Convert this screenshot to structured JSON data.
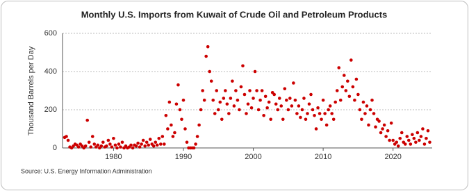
{
  "chart_data": {
    "type": "scatter",
    "title": "Monthly U.S. Imports from Kuwait of Crude Oil and Petroleum Products",
    "y_label": "Thousand Barrels per Day",
    "source": "Source: U.S. Energy Information Administration",
    "color": "#cc0000",
    "grid": true,
    "xlim": [
      1972.7,
      2025.6
    ],
    "xticks": [
      1980,
      1990,
      2000,
      2010,
      2020
    ],
    "ylim": [
      0,
      600
    ],
    "yticks": [
      0,
      200,
      400,
      600
    ],
    "x": [
      1973,
      1973.25,
      1973.5,
      1973.75,
      1974,
      1974.25,
      1974.5,
      1974.75,
      1975,
      1975.25,
      1975.5,
      1975.75,
      1976,
      1976.25,
      1976.5,
      1976.75,
      1977,
      1977.25,
      1977.5,
      1977.75,
      1978,
      1978.25,
      1978.5,
      1978.75,
      1979,
      1979.25,
      1979.5,
      1979.75,
      1980,
      1980.25,
      1980.5,
      1980.75,
      1981,
      1981.25,
      1981.5,
      1981.75,
      1982,
      1982.25,
      1982.5,
      1982.75,
      1983,
      1983.25,
      1983.5,
      1983.75,
      1984,
      1984.25,
      1984.5,
      1984.75,
      1985,
      1985.25,
      1985.5,
      1985.75,
      1986,
      1986.25,
      1986.5,
      1986.75,
      1987,
      1987.25,
      1987.5,
      1987.75,
      1988,
      1988.25,
      1988.5,
      1988.75,
      1989,
      1989.25,
      1989.5,
      1989.75,
      1990,
      1990.25,
      1990.5,
      1990.75,
      1991,
      1991.25,
      1991.5,
      1991.75,
      1992,
      1992.25,
      1992.5,
      1992.75,
      1993,
      1993.25,
      1993.5,
      1993.75,
      1994,
      1994.25,
      1994.5,
      1994.75,
      1995,
      1995.25,
      1995.5,
      1995.75,
      1996,
      1996.25,
      1996.5,
      1996.75,
      1997,
      1997.25,
      1997.5,
      1997.75,
      1998,
      1998.25,
      1998.5,
      1998.75,
      1999,
      1999.25,
      1999.5,
      1999.75,
      2000,
      2000.25,
      2000.5,
      2000.75,
      2001,
      2001.25,
      2001.5,
      2001.75,
      2002,
      2002.25,
      2002.5,
      2002.75,
      2003,
      2003.25,
      2003.5,
      2003.75,
      2004,
      2004.25,
      2004.5,
      2004.75,
      2005,
      2005.25,
      2005.5,
      2005.75,
      2006,
      2006.25,
      2006.5,
      2006.75,
      2007,
      2007.25,
      2007.5,
      2007.75,
      2008,
      2008.25,
      2008.5,
      2008.75,
      2009,
      2009.25,
      2009.5,
      2009.75,
      2010,
      2010.25,
      2010.5,
      2010.75,
      2011,
      2011.25,
      2011.5,
      2011.75,
      2012,
      2012.25,
      2012.5,
      2012.75,
      2013,
      2013.25,
      2013.5,
      2013.75,
      2014,
      2014.25,
      2014.5,
      2014.75,
      2015,
      2015.25,
      2015.5,
      2015.75,
      2016,
      2016.25,
      2016.5,
      2016.75,
      2017,
      2017.25,
      2017.5,
      2017.75,
      2018,
      2018.25,
      2018.5,
      2018.75,
      2019,
      2019.25,
      2019.5,
      2019.75,
      2020,
      2020.25,
      2020.5,
      2020.75,
      2021,
      2021.25,
      2021.5,
      2021.75,
      2022,
      2022.25,
      2022.5,
      2022.75,
      2023,
      2023.25,
      2023.5,
      2023.75,
      2024,
      2024.25,
      2024.5,
      2024.75,
      2025,
      2025.25
    ],
    "values": [
      55,
      60,
      40,
      5,
      0,
      10,
      20,
      15,
      5,
      20,
      10,
      0,
      10,
      145,
      30,
      5,
      60,
      20,
      5,
      15,
      0,
      10,
      30,
      5,
      10,
      40,
      20,
      5,
      50,
      15,
      0,
      20,
      5,
      30,
      0,
      10,
      0,
      5,
      15,
      0,
      15,
      10,
      25,
      5,
      20,
      40,
      10,
      30,
      15,
      45,
      20,
      10,
      30,
      15,
      50,
      20,
      60,
      20,
      170,
      100,
      240,
      120,
      60,
      80,
      230,
      330,
      200,
      150,
      250,
      100,
      30,
      0,
      0,
      0,
      0,
      20,
      60,
      120,
      200,
      300,
      250,
      480,
      530,
      400,
      350,
      250,
      180,
      300,
      200,
      240,
      150,
      260,
      300,
      230,
      180,
      260,
      350,
      220,
      300,
      250,
      200,
      320,
      430,
      280,
      180,
      230,
      300,
      210,
      260,
      400,
      300,
      200,
      250,
      300,
      170,
      270,
      210,
      240,
      150,
      290,
      280,
      230,
      200,
      260,
      220,
      150,
      310,
      250,
      200,
      260,
      220,
      340,
      250,
      180,
      220,
      160,
      200,
      260,
      150,
      180,
      230,
      280,
      200,
      170,
      100,
      210,
      180,
      150,
      250,
      180,
      120,
      200,
      220,
      180,
      150,
      240,
      300,
      420,
      250,
      320,
      380,
      300,
      350,
      270,
      460,
      320,
      250,
      360,
      280,
      200,
      150,
      240,
      180,
      220,
      120,
      200,
      250,
      180,
      110,
      150,
      140,
      80,
      100,
      120,
      60,
      90,
      40,
      130,
      40,
      20,
      30,
      10,
      50,
      80,
      30,
      20,
      60,
      40,
      20,
      70,
      50,
      30,
      80,
      40,
      60,
      100,
      20,
      50,
      90,
      30
    ]
  }
}
